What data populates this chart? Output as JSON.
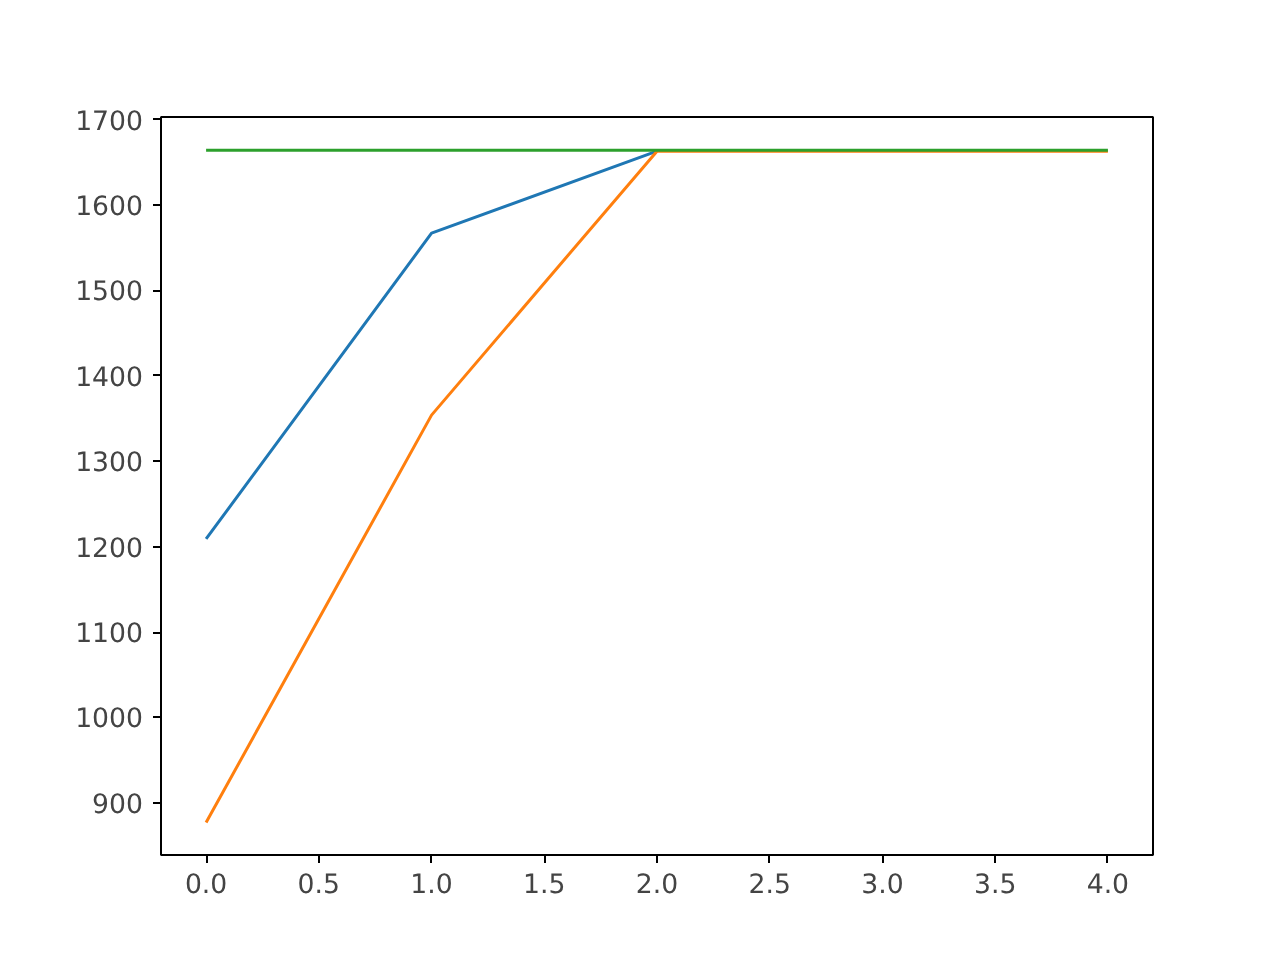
{
  "chart_data": {
    "type": "line",
    "x": [
      0,
      1,
      2,
      3,
      4
    ],
    "series": [
      {
        "color": "#1f77b4",
        "values": [
          1209,
          1567,
          1663,
          null,
          null
        ]
      },
      {
        "color": "#ff7f0e",
        "values": [
          877,
          1354,
          1663,
          1663,
          1663
        ]
      },
      {
        "color": "#2ca02c",
        "values": [
          1664,
          1664,
          1664,
          1664,
          1664
        ]
      }
    ],
    "xlim": [
      -0.2,
      4.2
    ],
    "xticks": [
      {
        "value": 0,
        "label": "0.0"
      },
      {
        "value": 0.5,
        "label": "0.5"
      },
      {
        "value": 1,
        "label": "1.0"
      },
      {
        "value": 1.5,
        "label": "1.5"
      },
      {
        "value": 2,
        "label": "2.0"
      },
      {
        "value": 2.5,
        "label": "2.5"
      },
      {
        "value": 3,
        "label": "3.0"
      },
      {
        "value": 3.5,
        "label": "3.5"
      },
      {
        "value": 4,
        "label": "4.0"
      }
    ],
    "ylim": [
      839,
      1703
    ],
    "yticks": [
      900,
      1000,
      1100,
      1200,
      1300,
      1400,
      1500,
      1600,
      1700
    ],
    "grid": false
  }
}
